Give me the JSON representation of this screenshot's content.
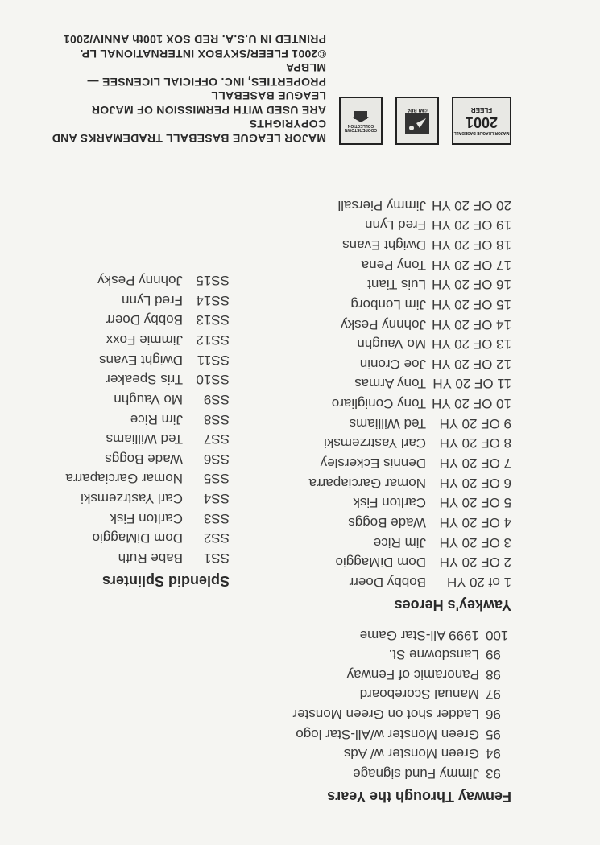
{
  "fenway": {
    "title": "Fenway Through the Years",
    "rows": [
      {
        "num": "93",
        "name": "Jimmy Fund signage"
      },
      {
        "num": "94",
        "name": "Green Monster w/ Ads"
      },
      {
        "num": "95",
        "name": "Green Monster w/All-Star logo"
      },
      {
        "num": "96",
        "name": "Ladder shot on Green Monster"
      },
      {
        "num": "97",
        "name": "Manual Scoreboard"
      },
      {
        "num": "98",
        "name": "Panoramic of Fenway"
      },
      {
        "num": "99",
        "name": "Lansdowne St."
      },
      {
        "num": "100",
        "name": "1999 All-Star Game"
      }
    ]
  },
  "yawkey": {
    "title": "Yawkey's Heroes",
    "rows": [
      {
        "code": "1 of 20 YH",
        "name": "Bobby Doerr"
      },
      {
        "code": "2 OF 20 YH",
        "name": "Dom DiMaggio"
      },
      {
        "code": "3 OF 20 YH",
        "name": "Jim Rice"
      },
      {
        "code": "4 OF 20 YH",
        "name": "Wade Boggs"
      },
      {
        "code": "5 OF 20 YH",
        "name": "Carlton Fisk"
      },
      {
        "code": "6 OF 20 YH",
        "name": "Nomar Garciaparra"
      },
      {
        "code": "7 OF 20 YH",
        "name": "Dennis Eckersley"
      },
      {
        "code": "8 OF 20 YH",
        "name": "Carl Yastrzemski"
      },
      {
        "code": "9 OF 20 YH",
        "name": "Ted Williams"
      },
      {
        "code": "10 OF 20 YH",
        "name": "Tony Conigliaro"
      },
      {
        "code": "11 OF 20 YH",
        "name": "Tony Armas"
      },
      {
        "code": "12 OF 20 YH",
        "name": "Joe Cronin"
      },
      {
        "code": "13 OF 20 YH",
        "name": "Mo Vaughn"
      },
      {
        "code": "14 OF 20 YH",
        "name": "Johnny Pesky"
      },
      {
        "code": "15 OF 20 YH",
        "name": "Jim Lonborg"
      },
      {
        "code": "16 OF 20 YH",
        "name": "Luis Tiant"
      },
      {
        "code": "17 OF 20 YH",
        "name": "Tony Pena"
      },
      {
        "code": "18 OF 20 YH",
        "name": "Dwight Evans"
      },
      {
        "code": "19 OF 20 YH",
        "name": "Fred Lynn"
      },
      {
        "code": "20 OF 20 YH",
        "name": "Jimmy Piersall"
      }
    ]
  },
  "splendid": {
    "title": "Splendid Splinters",
    "rows": [
      {
        "code": "SS1",
        "name": "Babe Ruth"
      },
      {
        "code": "SS2",
        "name": "Dom DiMaggio"
      },
      {
        "code": "SS3",
        "name": "Carlton Fisk"
      },
      {
        "code": "SS4",
        "name": "Carl Yastrzemski"
      },
      {
        "code": "SS5",
        "name": "Nomar Garciaparra"
      },
      {
        "code": "SS6",
        "name": "Wade Boggs"
      },
      {
        "code": "SS7",
        "name": "Ted Williams"
      },
      {
        "code": "SS8",
        "name": "Jim Rice"
      },
      {
        "code": "SS9",
        "name": "Mo Vaughn"
      },
      {
        "code": "SS10",
        "name": "Tris Speaker"
      },
      {
        "code": "SS11",
        "name": "Dwight Evans"
      },
      {
        "code": "SS12",
        "name": "Jimmie Foxx"
      },
      {
        "code": "SS13",
        "name": "Bobby Doerr"
      },
      {
        "code": "SS14",
        "name": "Fred Lynn"
      },
      {
        "code": "SS15",
        "name": "Johnny Pesky"
      }
    ]
  },
  "logos": {
    "fleer_top": "MAJOR LEAGUE BASEBALL",
    "fleer_brand": "FLEER",
    "fleer_year": "2001",
    "mlbpa": "©MLBPA",
    "cooperstown": "COOPERSTOWN COLLECTION"
  },
  "legal": {
    "line1": "MAJOR LEAGUE BASEBALL TRADEMARKS AND COPYRIGHTS",
    "line2": "ARE USED WITH PERMISSION OF MAJOR LEAGUE BASEBALL",
    "line3": "PROPERTIES, INC. OFFICIAL LICENSEE — MLBPA",
    "line4": "©2001 FLEER/SKYBOX INTERNATIONAL LP.",
    "line5": "PRINTED IN U.S.A. RED SOX 100th ANNIV/2001"
  }
}
